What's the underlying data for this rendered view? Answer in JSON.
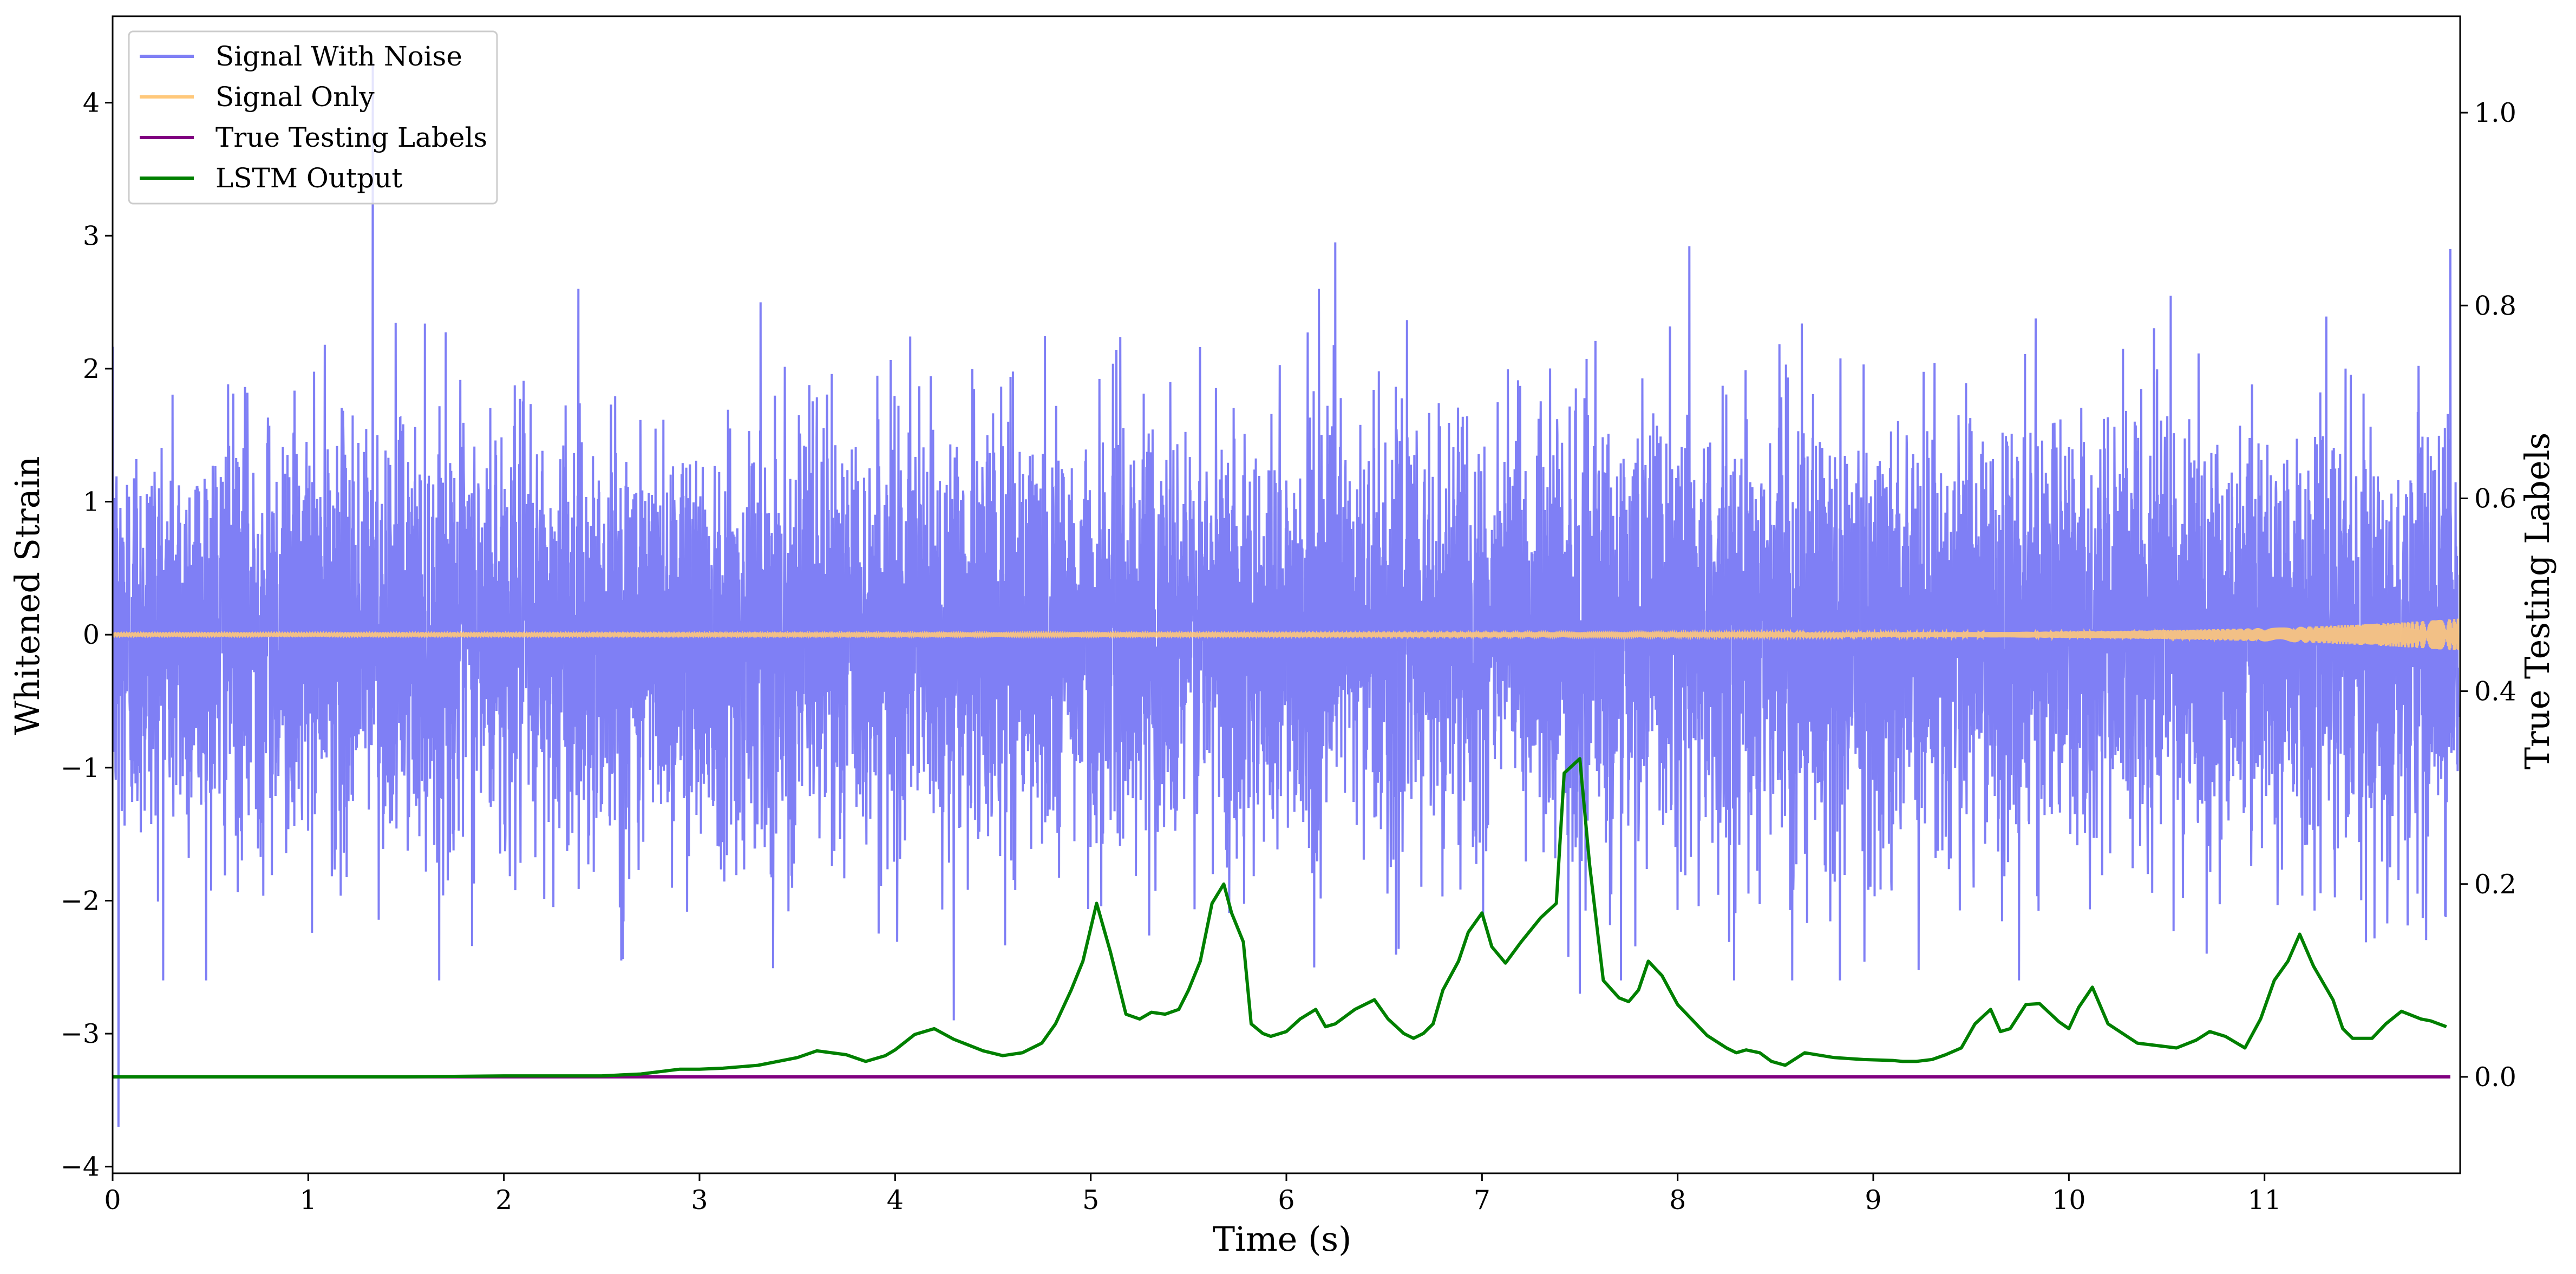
{
  "chart_data": {
    "type": "line",
    "xlabel": "Time (s)",
    "ylabel": "Whitened Strain",
    "ylabel_right": "True Testing Labels",
    "xlim": [
      0,
      12
    ],
    "ylim": [
      -4.05,
      4.65
    ],
    "ylim_right": [
      -0.1,
      1.1
    ],
    "x_ticks": [
      0,
      1,
      2,
      3,
      4,
      5,
      6,
      7,
      8,
      9,
      10,
      11
    ],
    "y_ticks": [
      -4,
      -3,
      -2,
      -1,
      0,
      1,
      2,
      3,
      4
    ],
    "y_ticks_right": [
      "0.0",
      "0.2",
      "0.4",
      "0.6",
      "0.8",
      "1.0"
    ],
    "grid": false,
    "legend_position": "top-left",
    "series": [
      {
        "name": "Signal With Noise",
        "axis": "left",
        "color": "#7f7ff5",
        "note_values": "dense noisy strain, roughly N(0,1) amplitude up to about ±3, spikes to 4.3",
        "spike_points": [
          [
            1.33,
            4.3
          ],
          [
            0.03,
            -3.7
          ],
          [
            6.25,
            2.95
          ],
          [
            7.5,
            2.87
          ],
          [
            8.06,
            2.92
          ],
          [
            2.6,
            -2.45
          ],
          [
            4.3,
            -2.9
          ],
          [
            7.5,
            -2.7
          ],
          [
            11.95,
            2.9
          ]
        ]
      },
      {
        "name": "Signal Only",
        "axis": "left",
        "color": "#ffc87a",
        "note_values": "chirp centered on 0, amplitude ~0.01 growing to ~0.12 at t=12"
      },
      {
        "name": "True Testing Labels",
        "axis": "right",
        "color": "#800080",
        "x": [
          0,
          11.95
        ],
        "y": [
          0.0,
          0.0
        ]
      },
      {
        "name": "LSTM Output",
        "axis": "right",
        "color": "#008000",
        "x": [
          0,
          0.5,
          1.0,
          1.5,
          2.0,
          2.5,
          2.7,
          2.9,
          3.0,
          3.12,
          3.3,
          3.5,
          3.6,
          3.75,
          3.85,
          3.95,
          4.0,
          4.1,
          4.2,
          4.3,
          4.45,
          4.55,
          4.65,
          4.7,
          4.75,
          4.82,
          4.9,
          4.96,
          5.03,
          5.1,
          5.18,
          5.25,
          5.31,
          5.38,
          5.45,
          5.5,
          5.56,
          5.62,
          5.68,
          5.72,
          5.78,
          5.82,
          5.88,
          5.92,
          6.0,
          6.07,
          6.15,
          6.2,
          6.25,
          6.35,
          6.45,
          6.52,
          6.6,
          6.65,
          6.7,
          6.75,
          6.8,
          6.88,
          6.93,
          7.0,
          7.05,
          7.12,
          7.2,
          7.3,
          7.38,
          7.42,
          7.5,
          7.55,
          7.62,
          7.7,
          7.75,
          7.8,
          7.85,
          7.92,
          8.0,
          8.08,
          8.15,
          8.25,
          8.3,
          8.35,
          8.42,
          8.48,
          8.55,
          8.65,
          8.8,
          8.95,
          9.1,
          9.15,
          9.22,
          9.3,
          9.37,
          9.45,
          9.52,
          9.6,
          9.65,
          9.7,
          9.78,
          9.85,
          9.95,
          10.0,
          10.05,
          10.12,
          10.2,
          10.35,
          10.55,
          10.65,
          10.72,
          10.8,
          10.85,
          10.9,
          10.98,
          11.05,
          11.12,
          11.18,
          11.25,
          11.35,
          11.4,
          11.45,
          11.55,
          11.62,
          11.7,
          11.8,
          11.85,
          11.93
        ],
        "y": [
          0.0,
          0.0,
          0.0,
          0.0,
          0.001,
          0.001,
          0.003,
          0.008,
          0.008,
          0.009,
          0.012,
          0.02,
          0.027,
          0.023,
          0.016,
          0.022,
          0.028,
          0.044,
          0.05,
          0.039,
          0.027,
          0.022,
          0.025,
          0.03,
          0.035,
          0.055,
          0.09,
          0.12,
          0.18,
          0.13,
          0.065,
          0.06,
          0.067,
          0.065,
          0.07,
          0.09,
          0.12,
          0.18,
          0.2,
          0.17,
          0.14,
          0.055,
          0.045,
          0.042,
          0.047,
          0.06,
          0.07,
          0.052,
          0.055,
          0.07,
          0.08,
          0.06,
          0.045,
          0.04,
          0.045,
          0.055,
          0.09,
          0.12,
          0.15,
          0.17,
          0.135,
          0.118,
          0.14,
          0.165,
          0.18,
          0.315,
          0.33,
          0.22,
          0.1,
          0.082,
          0.078,
          0.09,
          0.12,
          0.105,
          0.075,
          0.058,
          0.043,
          0.03,
          0.025,
          0.028,
          0.025,
          0.016,
          0.012,
          0.025,
          0.02,
          0.018,
          0.017,
          0.016,
          0.016,
          0.018,
          0.023,
          0.03,
          0.055,
          0.07,
          0.047,
          0.05,
          0.075,
          0.076,
          0.057,
          0.05,
          0.072,
          0.093,
          0.055,
          0.035,
          0.03,
          0.038,
          0.047,
          0.042,
          0.036,
          0.03,
          0.06,
          0.1,
          0.12,
          0.148,
          0.115,
          0.08,
          0.05,
          0.04,
          0.04,
          0.055,
          0.068,
          0.06,
          0.058,
          0.052
        ]
      }
    ]
  }
}
